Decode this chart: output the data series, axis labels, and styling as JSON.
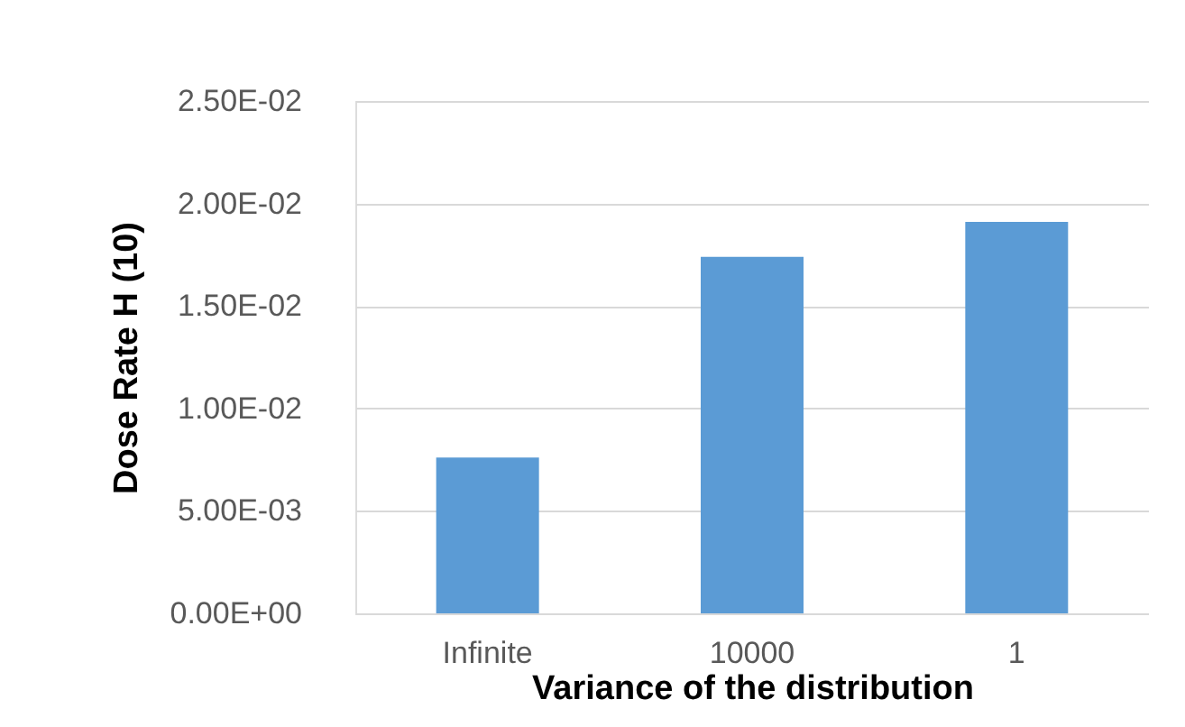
{
  "chart_data": {
    "type": "bar",
    "xlabel": "Variance of the distribution",
    "ylabel": "Dose Rate H (10)",
    "categories": [
      "Infinite",
      "10000",
      "1"
    ],
    "values": [
      0.0076,
      0.0174,
      0.0191
    ],
    "color": "#5b9bd5",
    "ylim": [
      0,
      0.025
    ],
    "yticks": [
      {
        "value": 0,
        "label": "0.00E+00"
      },
      {
        "value": 0.005,
        "label": "5.00E-03"
      },
      {
        "value": 0.01,
        "label": "1.00E-02"
      },
      {
        "value": 0.015,
        "label": "1.50E-02"
      },
      {
        "value": 0.02,
        "label": "2.00E-02"
      },
      {
        "value": 0.025,
        "label": "2.50E-02"
      }
    ],
    "grid": "y"
  }
}
